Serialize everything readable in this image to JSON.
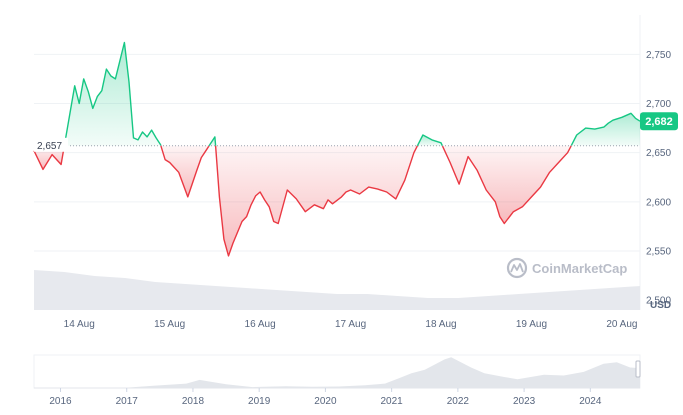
{
  "colors": {
    "up": "#16c784",
    "down": "#ea3943",
    "grid": "#eff2f5",
    "volume": "#e7e9ee",
    "navigator": "#e3e6eb",
    "watermark": "#b9bdc8"
  },
  "watermark_icon": "coinmarketcap-logo-icon",
  "chart_data": {
    "type": "line",
    "baseline": 2657,
    "baseline_label": "2,657",
    "current_label": "2,682",
    "y_unit": "USD",
    "ylim": [
      2490,
      2790
    ],
    "y_ticks": [
      2500,
      2550,
      2600,
      2650,
      2700,
      2750
    ],
    "y_tick_labels": [
      "2,500",
      "2,550",
      "2,600",
      "2,650",
      "2,700",
      "2,750"
    ],
    "x_range": [
      0,
      6.7
    ],
    "x_ticks": [
      0.5,
      1.5,
      2.5,
      3.5,
      4.5,
      5.5,
      6.5
    ],
    "x_tick_labels": [
      "14 Aug",
      "15 Aug",
      "16 Aug",
      "17 Aug",
      "18 Aug",
      "19 Aug",
      "20 Aug"
    ],
    "price": {
      "x": [
        0.0,
        0.1,
        0.2,
        0.3,
        0.35,
        0.45,
        0.5,
        0.55,
        0.6,
        0.65,
        0.7,
        0.75,
        0.8,
        0.85,
        0.9,
        1.0,
        1.05,
        1.1,
        1.15,
        1.2,
        1.25,
        1.3,
        1.35,
        1.4,
        1.45,
        1.5,
        1.6,
        1.7,
        1.8,
        1.85,
        1.9,
        2.0,
        2.05,
        2.1,
        2.15,
        2.2,
        2.3,
        2.35,
        2.4,
        2.45,
        2.5,
        2.55,
        2.6,
        2.65,
        2.7,
        2.8,
        2.9,
        3.0,
        3.1,
        3.2,
        3.25,
        3.3,
        3.4,
        3.45,
        3.5,
        3.6,
        3.7,
        3.8,
        3.9,
        4.0,
        4.1,
        4.2,
        4.3,
        4.4,
        4.5,
        4.6,
        4.7,
        4.8,
        4.9,
        5.0,
        5.1,
        5.15,
        5.2,
        5.3,
        5.4,
        5.5,
        5.6,
        5.7,
        5.8,
        5.9,
        5.95,
        6.0,
        6.1,
        6.2,
        6.3,
        6.35,
        6.4,
        6.5,
        6.6,
        6.65,
        6.7
      ],
      "y": [
        2652,
        2633,
        2648,
        2638,
        2665,
        2718,
        2700,
        2725,
        2712,
        2695,
        2707,
        2713,
        2735,
        2728,
        2725,
        2762,
        2722,
        2665,
        2663,
        2671,
        2666,
        2673,
        2665,
        2658,
        2643,
        2640,
        2630,
        2605,
        2632,
        2645,
        2652,
        2666,
        2605,
        2562,
        2545,
        2558,
        2580,
        2585,
        2597,
        2606,
        2610,
        2602,
        2595,
        2580,
        2578,
        2612,
        2603,
        2590,
        2597,
        2593,
        2602,
        2598,
        2605,
        2610,
        2612,
        2608,
        2615,
        2613,
        2610,
        2603,
        2622,
        2650,
        2668,
        2663,
        2660,
        2640,
        2618,
        2646,
        2632,
        2612,
        2600,
        2585,
        2578,
        2590,
        2595,
        2605,
        2615,
        2630,
        2640,
        2650,
        2659,
        2668,
        2675,
        2674,
        2676,
        2680,
        2683,
        2686,
        2690,
        2685,
        2682
      ]
    },
    "navigator": {
      "x_ticks": [
        2016,
        2017,
        2018,
        2019,
        2020,
        2021,
        2022,
        2023,
        2024
      ],
      "x_tick_labels": [
        "2016",
        "2017",
        "2018",
        "2019",
        "2020",
        "2021",
        "2022",
        "2023",
        "2024"
      ],
      "x_range": [
        2015.6,
        2024.75
      ],
      "years": [
        2015.6,
        2016.5,
        2017.0,
        2017.4,
        2017.9,
        2018.1,
        2018.5,
        2018.9,
        2019.4,
        2019.8,
        2020.2,
        2020.6,
        2020.9,
        2021.1,
        2021.3,
        2021.5,
        2021.8,
        2021.9,
        2022.2,
        2022.4,
        2022.7,
        2022.9,
        2023.3,
        2023.6,
        2023.9,
        2024.2,
        2024.4,
        2024.6,
        2024.75
      ],
      "price": [
        1,
        10,
        50,
        300,
        600,
        1100,
        500,
        120,
        250,
        180,
        200,
        380,
        600,
        1300,
        2000,
        2500,
        3900,
        4200,
        2800,
        2000,
        1500,
        1200,
        1800,
        1700,
        2200,
        3300,
        3500,
        2800,
        2700
      ],
      "ymax": 4500
    },
    "volume_profile": [
      0.2,
      0.19,
      0.17,
      0.16,
      0.14,
      0.13,
      0.12,
      0.11,
      0.1,
      0.09,
      0.08,
      0.08,
      0.07,
      0.06,
      0.06,
      0.07,
      0.08,
      0.09,
      0.1,
      0.11,
      0.12
    ]
  }
}
